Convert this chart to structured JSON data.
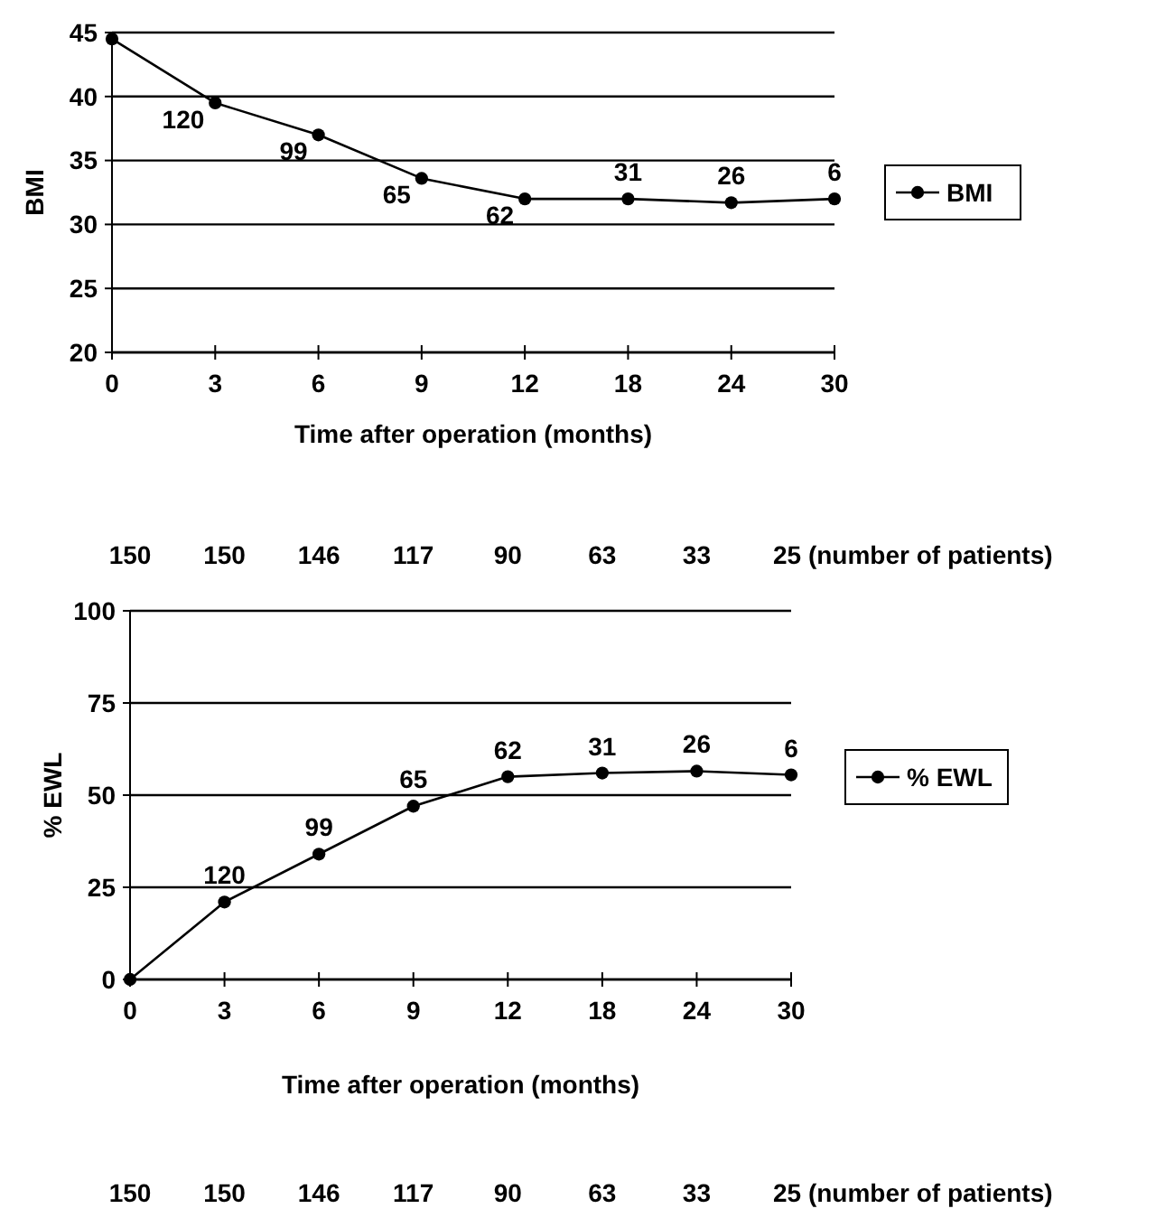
{
  "chart_data": [
    {
      "type": "line",
      "xlabel": "Time after operation (months)",
      "ylabel": "BMI",
      "categories": [
        "0",
        "3",
        "6",
        "9",
        "12",
        "18",
        "24",
        "30"
      ],
      "series": [
        {
          "name": "BMI",
          "color": "#000000",
          "values": [
            44.5,
            39.5,
            37,
            33.6,
            32,
            32,
            31.7,
            32
          ]
        }
      ],
      "ylim": [
        20,
        45
      ],
      "yticks": [
        20,
        25,
        30,
        35,
        40,
        45
      ],
      "grid": "y",
      "legend": "right",
      "marker": "circle",
      "line_style": "solid",
      "annotations": [
        {
          "text": "120",
          "x": "3",
          "y": 39.5
        },
        {
          "text": "99",
          "x": "6",
          "y": 37
        },
        {
          "text": "65",
          "x": "9",
          "y": 33.6
        },
        {
          "text": "62",
          "x": "12",
          "y": 32
        },
        {
          "text": "31",
          "x": "18",
          "y": 32
        },
        {
          "text": "26",
          "x": "24",
          "y": 31.7
        },
        {
          "text": "6",
          "x": "30",
          "y": 32
        }
      ]
    },
    {
      "type": "line",
      "xlabel": "Time after operation (months)",
      "ylabel": "% EWL",
      "categories": [
        "0",
        "3",
        "6",
        "9",
        "12",
        "18",
        "24",
        "30"
      ],
      "series": [
        {
          "name": "% EWL",
          "color": "#000000",
          "values": [
            0,
            21,
            34,
            47,
            55,
            56,
            56.5,
            55.5
          ]
        }
      ],
      "ylim": [
        0,
        100
      ],
      "yticks": [
        0,
        25,
        50,
        75,
        100
      ],
      "grid": "y",
      "legend": "right",
      "marker": "circle",
      "line_style": "solid",
      "annotations": [
        {
          "text": "120",
          "x": "3",
          "y": 21
        },
        {
          "text": "99",
          "x": "6",
          "y": 34
        },
        {
          "text": "65",
          "x": "9",
          "y": 47
        },
        {
          "text": "62",
          "x": "12",
          "y": 55
        },
        {
          "text": "31",
          "x": "18",
          "y": 56
        },
        {
          "text": "26",
          "x": "24",
          "y": 56.5
        },
        {
          "text": "6",
          "x": "30",
          "y": 55.5
        },
        "150",
        "150",
        "146",
        "117",
        "90",
        "63",
        "33",
        "25 (number of patients)",
        "150",
        "150",
        "146",
        "117",
        "90",
        "63",
        "33",
        "25 (number of patients)"
      ]
    }
  ]
}
